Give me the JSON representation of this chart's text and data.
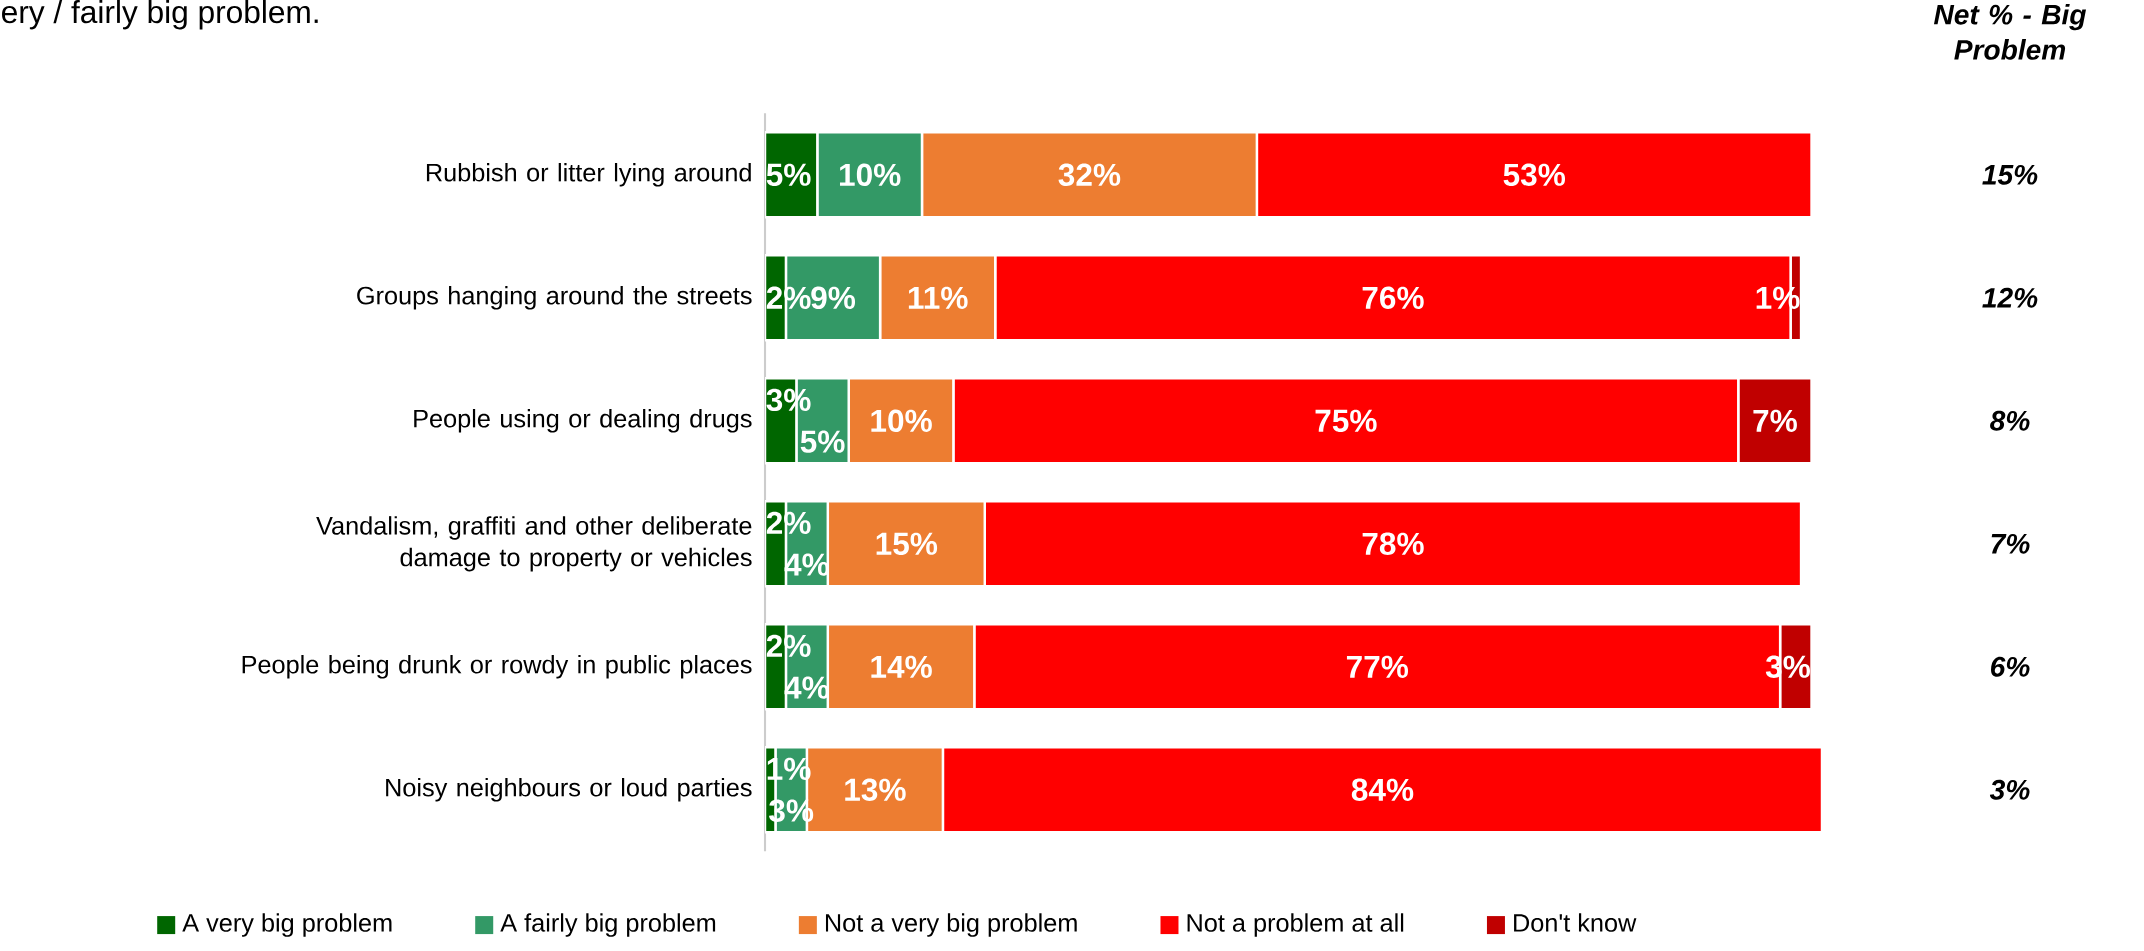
{
  "chart_data": {
    "type": "bar",
    "orientation": "horizontal",
    "stacked": true,
    "title": "ery / fairly big problem.",
    "categories": [
      "Rubbish or litter lying around",
      "Groups hanging around the streets",
      "People using or dealing drugs",
      "Vandalism, graffiti and other deliberate damage to property or vehicles",
      "People being drunk or rowdy in public places",
      "Noisy neighbours or loud parties"
    ],
    "series": [
      {
        "name": "A very big problem",
        "color": "#006600",
        "values": [
          5,
          2,
          3,
          2,
          2,
          1
        ],
        "value_labels": [
          "5%",
          "2%",
          "3%",
          "2%",
          "2%",
          "1%"
        ]
      },
      {
        "name": "A fairly big problem",
        "color": "#339966",
        "values": [
          10,
          9,
          5,
          4,
          4,
          3
        ],
        "value_labels": [
          "10%",
          "9%",
          "5%",
          "4%",
          "4%",
          "3%"
        ]
      },
      {
        "name": "Not a very big problem",
        "color": "#ED7D31",
        "values": [
          32,
          11,
          10,
          15,
          14,
          13
        ],
        "value_labels": [
          "32%",
          "11%",
          "10%",
          "15%",
          "14%",
          "13%"
        ]
      },
      {
        "name": "Not a problem at all",
        "color": "#FF0000",
        "values": [
          53,
          76,
          75,
          78,
          77,
          84
        ],
        "value_labels": [
          "53%",
          "76%",
          "75%",
          "78%",
          "77%",
          "84%"
        ]
      },
      {
        "name": "Don't know",
        "color": "#C00000",
        "values": [
          null,
          1,
          7,
          null,
          3,
          null
        ],
        "value_labels": [
          null,
          "1%",
          "7%",
          null,
          "3%",
          null
        ]
      }
    ],
    "tick_labels": "y",
    "legend": "bottom",
    "annotations": [
      "Net % -  Big Problem",
      "15%",
      "12%",
      "8%",
      "7%",
      "6%",
      "3%"
    ]
  }
}
